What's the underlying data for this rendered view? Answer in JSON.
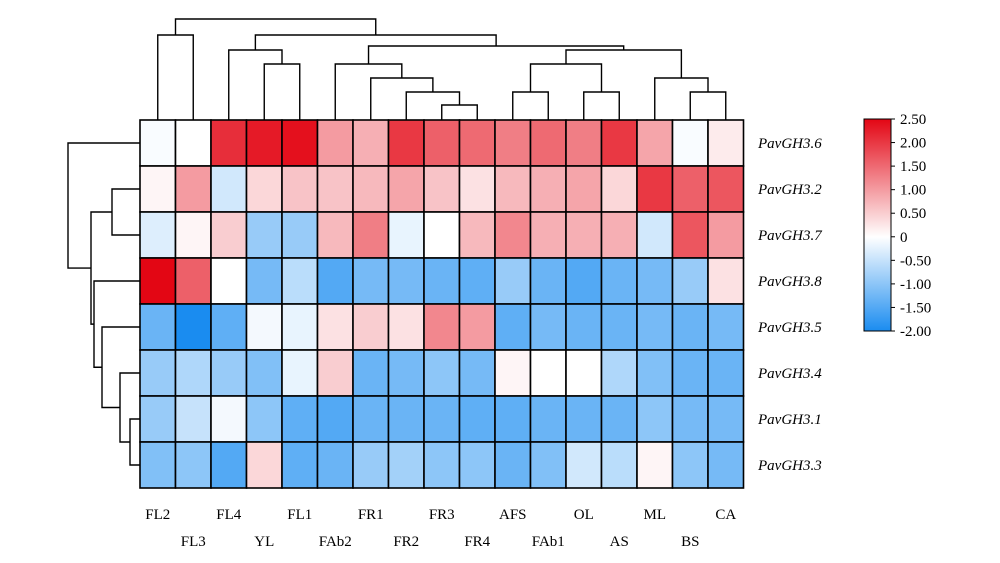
{
  "chart_data": {
    "type": "heatmap",
    "rows": [
      "PavGH3.6",
      "PavGH3.2",
      "PavGH3.7",
      "PavGH3.8",
      "PavGH3.5",
      "PavGH3.4",
      "PavGH3.1",
      "PavGH3.3"
    ],
    "columns": [
      "FL2",
      "FL3",
      "FL4",
      "YL",
      "FL1",
      "FAb2",
      "FR1",
      "FR2",
      "FR3",
      "FR4",
      "AFS",
      "FAb1",
      "OL",
      "AS",
      "ML",
      "BS",
      "CA"
    ],
    "values": [
      [
        -0.05,
        0.0,
        2.1,
        2.3,
        2.4,
        1.0,
        0.8,
        2.0,
        1.6,
        1.5,
        1.3,
        1.5,
        1.3,
        2.0,
        0.9,
        -0.05,
        0.2
      ],
      [
        0.1,
        1.0,
        -0.4,
        0.4,
        0.6,
        0.6,
        0.7,
        0.9,
        0.6,
        0.3,
        0.7,
        0.8,
        0.9,
        0.4,
        2.0,
        1.6,
        1.7
      ],
      [
        -0.3,
        0.1,
        0.5,
        -0.9,
        -0.9,
        0.7,
        1.3,
        -0.2,
        0.0,
        0.7,
        1.2,
        0.8,
        0.8,
        0.8,
        -0.4,
        1.7,
        1.0
      ],
      [
        2.5,
        1.6,
        0.0,
        -1.2,
        -0.6,
        -1.5,
        -1.2,
        -1.2,
        -1.3,
        -1.4,
        -0.9,
        -1.3,
        -1.5,
        -1.3,
        -1.2,
        -0.9,
        0.3
      ],
      [
        -1.3,
        -2.0,
        -1.4,
        -0.1,
        -0.2,
        0.3,
        0.5,
        0.3,
        1.2,
        1.0,
        -1.4,
        -1.2,
        -1.3,
        -1.3,
        -1.2,
        -1.3,
        -1.2
      ],
      [
        -0.9,
        -0.7,
        -0.9,
        -1.1,
        -0.2,
        0.5,
        -1.3,
        -1.2,
        -1.0,
        -1.2,
        0.1,
        0.0,
        0.0,
        -0.7,
        -1.1,
        -1.3,
        -1.3
      ],
      [
        -0.9,
        -0.5,
        -0.1,
        -1.0,
        -1.4,
        -1.5,
        -1.3,
        -1.3,
        -1.3,
        -1.4,
        -1.4,
        -1.3,
        -1.3,
        -1.3,
        -1.0,
        -1.2,
        -1.2
      ],
      [
        -1.1,
        -1.0,
        -1.5,
        0.4,
        -1.4,
        -1.3,
        -0.9,
        -0.8,
        -1.0,
        -1.0,
        -1.3,
        -1.1,
        -0.4,
        -0.6,
        0.1,
        -1.0,
        -1.2
      ]
    ],
    "colorbar": {
      "min": -2.0,
      "max": 2.5,
      "ticks": [
        "2.50",
        "2.00",
        "1.50",
        "1.00",
        "0.50",
        "0",
        "-0.50",
        "-1.00",
        "-1.50",
        "-2.00"
      ],
      "colors": {
        "low": "#1a8cf0",
        "mid": "#ffffff",
        "high": "#e30614"
      }
    },
    "title": "",
    "xlabel": "",
    "ylabel": ""
  }
}
